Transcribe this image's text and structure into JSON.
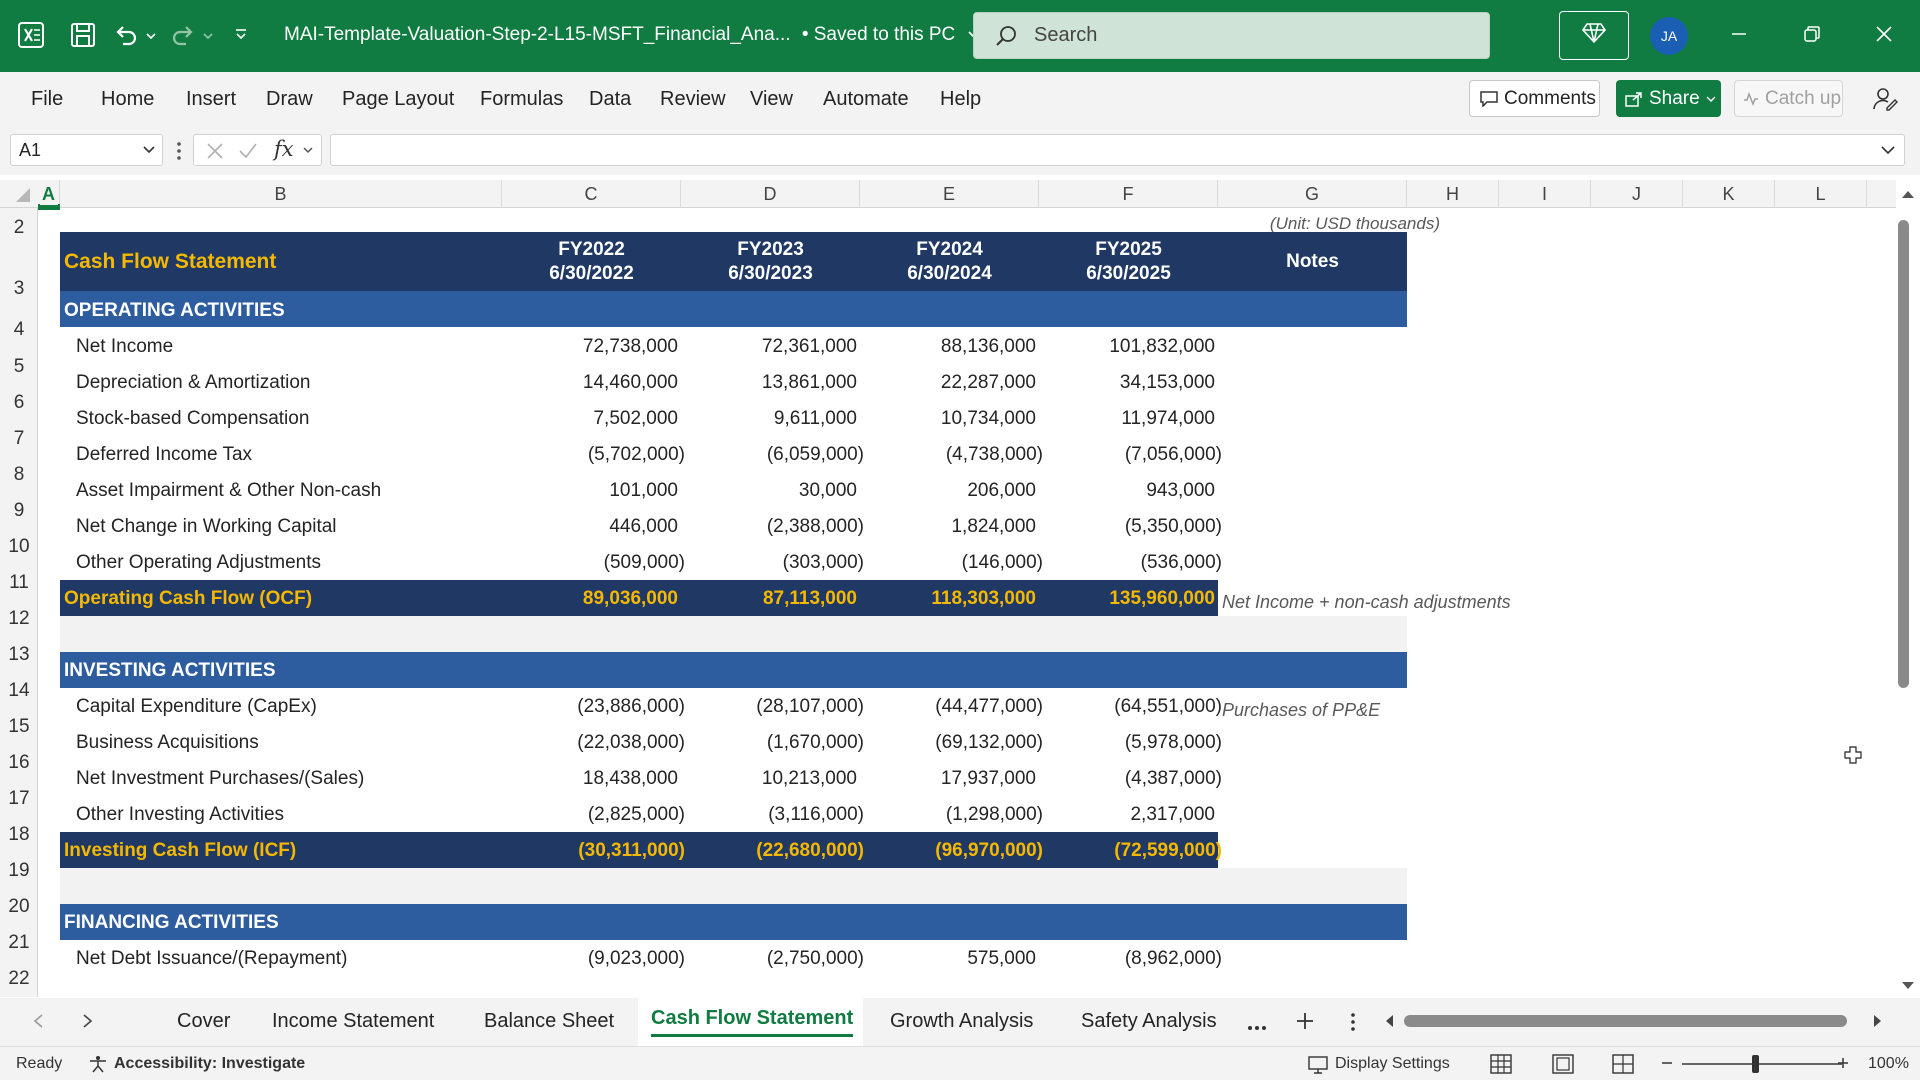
{
  "titlebar": {
    "doc_title": "MAI-Template-Valuation-Step-2-L15-MSFT_Financial_Ana...",
    "save_status": "• Saved to this PC",
    "search_placeholder": "Search",
    "avatar_initials": "JA",
    "accent": "#107c41"
  },
  "menu": {
    "items": [
      "File",
      "Home",
      "Insert",
      "Draw",
      "Page Layout",
      "Formulas",
      "Data",
      "Review",
      "View",
      "Automate",
      "Help"
    ],
    "comments_label": "Comments",
    "share_label": "Share",
    "catchup_label": "Catch up"
  },
  "formula_bar": {
    "name_box": "A1",
    "fx_label": "fx",
    "formula": ""
  },
  "grid": {
    "columns": [
      "A",
      "B",
      "C",
      "D",
      "E",
      "F",
      "G",
      "H",
      "I",
      "J",
      "K",
      "L"
    ],
    "rows": [
      "2",
      "3",
      "4",
      "5",
      "6",
      "7",
      "8",
      "9",
      "10",
      "11",
      "12",
      "13",
      "14",
      "15",
      "16",
      "17",
      "18",
      "19",
      "20",
      "21",
      "22"
    ],
    "unit_note": "(Unit: USD thousands)",
    "header": {
      "title": "Cash Flow Statement",
      "years": [
        {
          "fy": "FY2022",
          "date": "6/30/2022"
        },
        {
          "fy": "FY2023",
          "date": "6/30/2023"
        },
        {
          "fy": "FY2024",
          "date": "6/30/2024"
        },
        {
          "fy": "FY2025",
          "date": "6/30/2025"
        }
      ],
      "notes_label": "Notes"
    },
    "operating": {
      "title": "OPERATING ACTIVITIES",
      "items": [
        {
          "label": "Net Income",
          "values": [
            "72,738,000",
            "72,361,000",
            "88,136,000",
            "101,832,000"
          ],
          "note": ""
        },
        {
          "label": "Depreciation & Amortization",
          "values": [
            "14,460,000",
            "13,861,000",
            "22,287,000",
            "34,153,000"
          ],
          "note": ""
        },
        {
          "label": "Stock-based Compensation",
          "values": [
            "7,502,000",
            "9,611,000",
            "10,734,000",
            "11,974,000"
          ],
          "note": ""
        },
        {
          "label": "Deferred Income Tax",
          "values": [
            "(5,702,000)",
            "(6,059,000)",
            "(4,738,000)",
            "(7,056,000)"
          ],
          "note": ""
        },
        {
          "label": "Asset Impairment & Other Non-cash",
          "values": [
            "101,000",
            "30,000",
            "206,000",
            "943,000"
          ],
          "note": ""
        },
        {
          "label": "Net Change in Working Capital",
          "values": [
            "446,000",
            "(2,388,000)",
            "1,824,000",
            "(5,350,000)"
          ],
          "note": ""
        },
        {
          "label": "Other Operating Adjustments",
          "values": [
            "(509,000)",
            "(303,000)",
            "(146,000)",
            "(536,000)"
          ],
          "note": ""
        }
      ],
      "total": {
        "label": "Operating Cash Flow (OCF)",
        "values": [
          "89,036,000",
          "87,113,000",
          "118,303,000",
          "135,960,000"
        ],
        "note": "Net Income + non-cash adjustments"
      }
    },
    "investing": {
      "title": "INVESTING ACTIVITIES",
      "items": [
        {
          "label": "Capital Expenditure (CapEx)",
          "values": [
            "(23,886,000)",
            "(28,107,000)",
            "(44,477,000)",
            "(64,551,000)"
          ],
          "note": "Purchases of PP&E"
        },
        {
          "label": "Business Acquisitions",
          "values": [
            "(22,038,000)",
            "(1,670,000)",
            "(69,132,000)",
            "(5,978,000)"
          ],
          "note": ""
        },
        {
          "label": "Net Investment Purchases/(Sales)",
          "values": [
            "18,438,000",
            "10,213,000",
            "17,937,000",
            "(4,387,000)"
          ],
          "note": ""
        },
        {
          "label": "Other Investing Activities",
          "values": [
            "(2,825,000)",
            "(3,116,000)",
            "(1,298,000)",
            "2,317,000"
          ],
          "note": ""
        }
      ],
      "total": {
        "label": "Investing Cash Flow (ICF)",
        "values": [
          "(30,311,000)",
          "(22,680,000)",
          "(96,970,000)",
          "(72,599,000)"
        ],
        "note": ""
      }
    },
    "financing": {
      "title": "FINANCING ACTIVITIES",
      "items": [
        {
          "label": "Net Debt Issuance/(Repayment)",
          "values": [
            "(9,023,000)",
            "(2,750,000)",
            "575,000",
            "(8,962,000)"
          ],
          "note": ""
        }
      ]
    },
    "colors": {
      "header_navy": "#1f3864",
      "section_blue": "#2e5d9f",
      "title_gold": "#f5b800",
      "spacer_gray": "#f2f2f2"
    }
  },
  "sheet_tabs": {
    "tabs": [
      "Cover",
      "Income Statement",
      "Balance Sheet",
      "Cash Flow Statement",
      "Growth Analysis",
      "Safety Analysis"
    ],
    "active": "Cash Flow Statement"
  },
  "statusbar": {
    "ready": "Ready",
    "accessibility": "Accessibility: Investigate",
    "display_settings": "Display Settings",
    "zoom": "100%"
  }
}
